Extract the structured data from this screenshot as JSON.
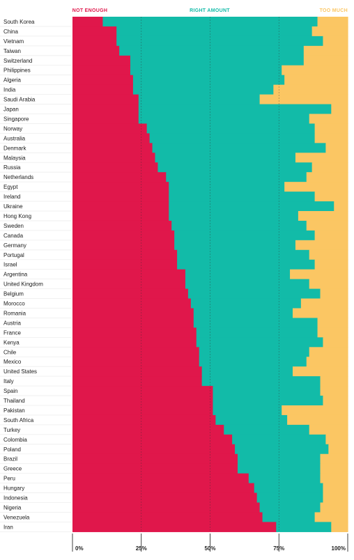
{
  "colors": {
    "not_enough": "#e0174b",
    "right_amount": "#12bba8",
    "too_much": "#fbc663",
    "divider": "#eeeeee",
    "gridline": "#333333"
  },
  "chart_data": {
    "type": "bar",
    "orientation": "horizontal",
    "stacked": true,
    "percent": true,
    "grid": true,
    "legend_position": "top",
    "xlim": [
      0,
      100
    ],
    "x_ticks": [
      "0%",
      "25%",
      "50%",
      "75%",
      "100%"
    ],
    "x_tick_values": [
      0,
      25,
      50,
      75,
      100
    ],
    "categories": [
      "South Korea",
      "China",
      "Vietnam",
      "Taiwan",
      "Switzerland",
      "Philippines",
      "Algeria",
      "India",
      "Saudi Arabia",
      "Japan",
      "Singapore",
      "Norway",
      "Australia",
      "Denmark",
      "Malaysia",
      "Russia",
      "Netherlands",
      "Egypt",
      "Ireland",
      "Ukraine",
      "Hong Kong",
      "Sweden",
      "Canada",
      "Germany",
      "Portugal",
      "Israel",
      "Argentina",
      "United Kingdom",
      "Belgium",
      "Morocco",
      "Romania",
      "Austria",
      "France",
      "Kenya",
      "Chile",
      "Mexico",
      "United States",
      "Italy",
      "Spain",
      "Thailand",
      "Pakistan",
      "South Africa",
      "Turkey",
      "Colombia",
      "Poland",
      "Brazil",
      "Greece",
      "Peru",
      "Hungary",
      "Indonesia",
      "Nigeria",
      "Venezuela",
      "Iran"
    ],
    "series": [
      {
        "name": "NOT ENOUGH",
        "values": [
          11,
          16,
          16,
          17,
          21,
          21,
          22,
          22,
          24,
          24,
          24,
          27,
          28,
          29,
          30,
          31,
          34,
          35,
          35,
          35,
          35,
          36,
          37,
          37,
          38,
          38,
          41,
          41,
          42,
          43,
          44,
          44,
          45,
          45,
          46,
          46,
          47,
          47,
          51,
          51,
          51,
          52,
          55,
          58,
          59,
          60,
          60,
          64,
          66,
          67,
          68,
          69,
          74
        ]
      },
      {
        "name": "RIGHT AMOUNT",
        "values": [
          78,
          71,
          75,
          67,
          63,
          55,
          55,
          51,
          44,
          70,
          62,
          61,
          60,
          63,
          51,
          56,
          51,
          42,
          53,
          60,
          47,
          49,
          51,
          44,
          48,
          50,
          38,
          45,
          48,
          40,
          36,
          45,
          44,
          46,
          40,
          39,
          33,
          43,
          39,
          40,
          25,
          26,
          31,
          34,
          34,
          30,
          30,
          26,
          25,
          24,
          22,
          19,
          20
        ]
      },
      {
        "name": "TOO MUCH",
        "values": [
          11,
          13,
          9,
          16,
          16,
          24,
          23,
          27,
          32,
          6,
          14,
          12,
          12,
          8,
          19,
          13,
          15,
          23,
          12,
          5,
          18,
          15,
          12,
          19,
          14,
          12,
          21,
          14,
          10,
          17,
          20,
          11,
          11,
          9,
          14,
          15,
          20,
          10,
          10,
          9,
          24,
          22,
          14,
          8,
          7,
          10,
          10,
          10,
          9,
          9,
          10,
          12,
          6
        ]
      }
    ]
  }
}
